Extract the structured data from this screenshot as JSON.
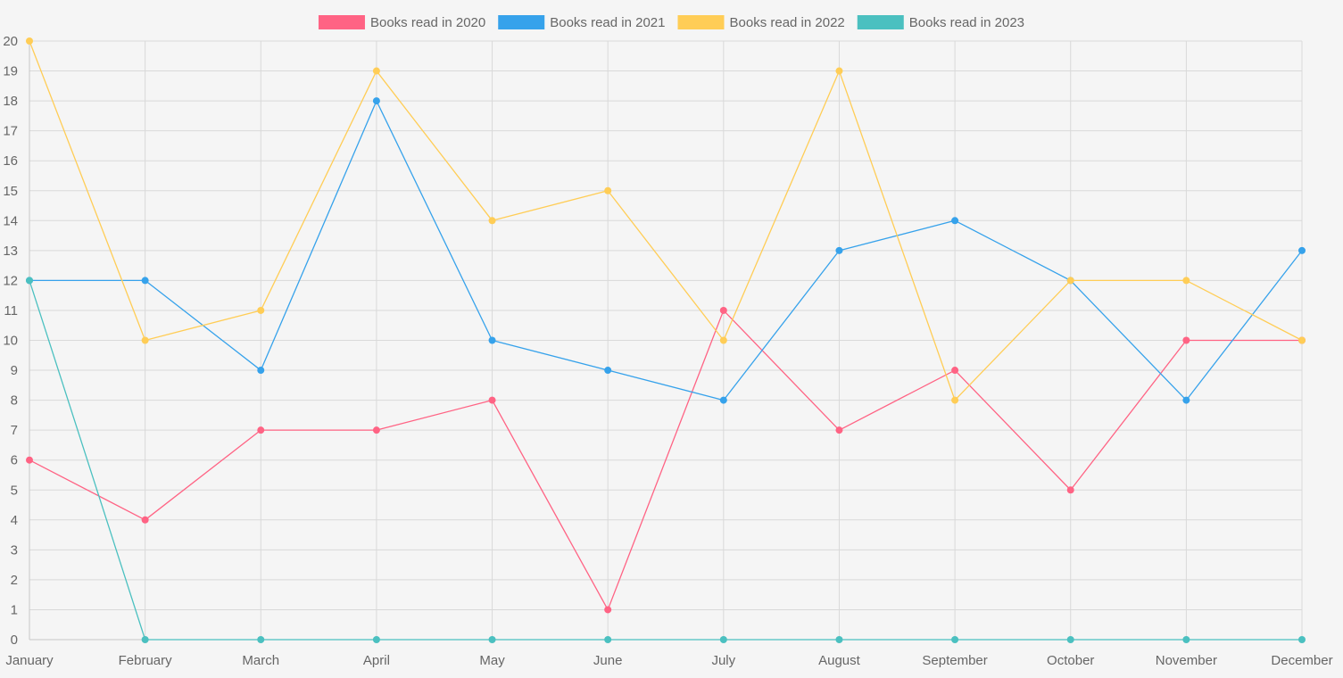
{
  "chart_data": {
    "type": "line",
    "title": "",
    "xlabel": "",
    "ylabel": "",
    "categories": [
      "January",
      "February",
      "March",
      "April",
      "May",
      "June",
      "July",
      "August",
      "September",
      "October",
      "November",
      "December"
    ],
    "ylim": [
      0,
      20
    ],
    "y_ticks": [
      0,
      1,
      2,
      3,
      4,
      5,
      6,
      7,
      8,
      9,
      10,
      11,
      12,
      13,
      14,
      15,
      16,
      17,
      18,
      19,
      20
    ],
    "grid": true,
    "legend_position": "top-center",
    "series": [
      {
        "name": "Books read in 2020",
        "color": "#ff6384",
        "values": [
          6,
          4,
          7,
          7,
          8,
          1,
          11,
          7,
          9,
          5,
          10,
          10
        ]
      },
      {
        "name": "Books read in 2021",
        "color": "#36a2eb",
        "values": [
          12,
          12,
          9,
          18,
          10,
          9,
          8,
          13,
          14,
          12,
          8,
          13
        ]
      },
      {
        "name": "Books read in 2022",
        "color": "#ffcd56",
        "values": [
          20,
          10,
          11,
          19,
          14,
          15,
          10,
          19,
          8,
          12,
          12,
          10
        ]
      },
      {
        "name": "Books read in 2023",
        "color": "#4bc0c0",
        "values": [
          12,
          0,
          0,
          0,
          0,
          0,
          0,
          0,
          0,
          0,
          0,
          0
        ]
      }
    ]
  }
}
